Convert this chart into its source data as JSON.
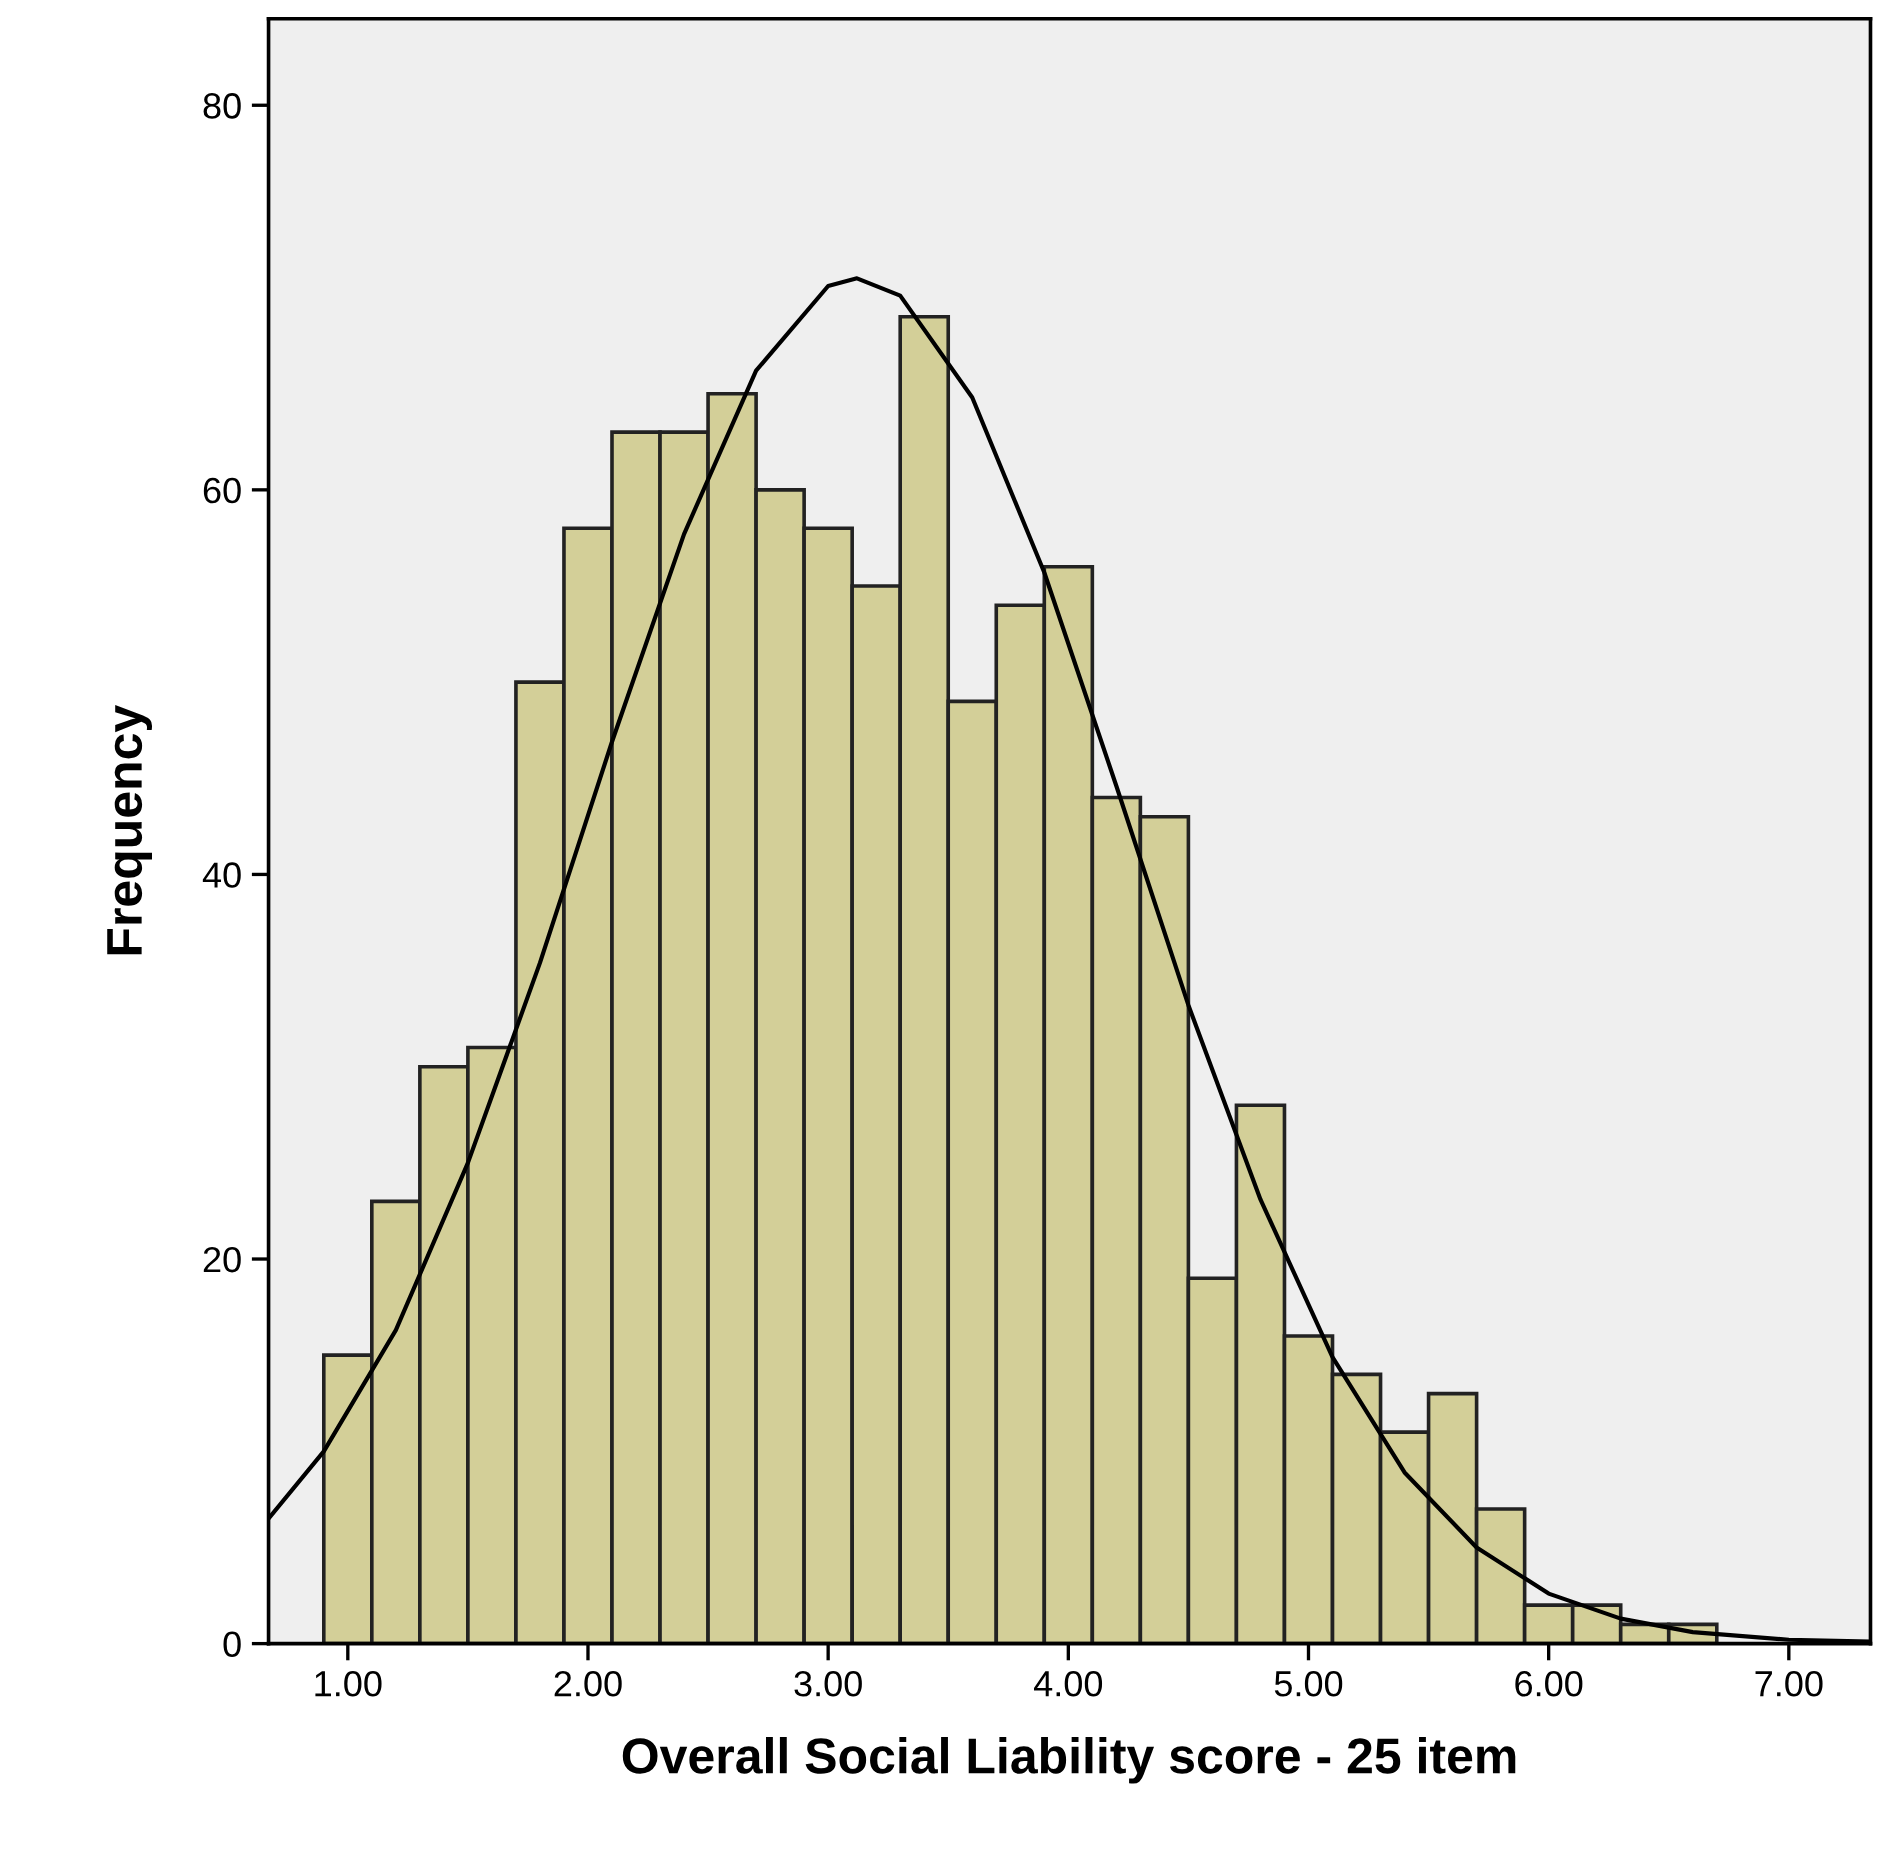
{
  "chart_data": {
    "type": "histogram",
    "xlabel": "Overall Social Liability score - 25 item",
    "ylabel": "Frequency",
    "bins": [
      0.9,
      1.1,
      1.3,
      1.5,
      1.7,
      1.9,
      2.1,
      2.3,
      2.5,
      2.7,
      2.9,
      3.1,
      3.3,
      3.5,
      3.7,
      3.9,
      4.1,
      4.3,
      4.5,
      4.7,
      4.9,
      5.1,
      5.3,
      5.5,
      5.7,
      5.9,
      6.1,
      6.3,
      6.5,
      6.7
    ],
    "values": [
      15,
      23,
      30,
      31,
      50,
      58,
      63,
      63,
      65,
      60,
      58,
      55,
      69,
      49,
      54,
      56,
      44,
      43,
      19,
      28,
      16,
      14,
      11,
      13,
      7,
      2,
      2,
      1,
      1
    ],
    "color": "#d3cf98",
    "series": [
      {
        "type": "line",
        "color": "#000000",
        "x": [
          0.67,
          0.9,
          1.2,
          1.5,
          1.8,
          2.1,
          2.4,
          2.7,
          3.0,
          3.12,
          3.3,
          3.6,
          3.9,
          4.2,
          4.5,
          4.8,
          5.1,
          5.4,
          5.7,
          6.0,
          6.3,
          6.6,
          7.0,
          7.34
        ],
        "values": [
          6.5,
          10,
          16.3,
          25,
          35.4,
          46.9,
          57.7,
          66.2,
          70.6,
          71,
          70.1,
          64.8,
          55.7,
          44.6,
          33.2,
          23.1,
          14.9,
          8.9,
          5,
          2.6,
          1.3,
          0.6,
          0.2,
          0.1
        ]
      }
    ],
    "xlim": [
      0.67,
      7.34
    ],
    "ylim": [
      0,
      84.5
    ],
    "xticks": [
      {
        "value": 1,
        "label": "1.00"
      },
      {
        "value": 2,
        "label": "2.00"
      },
      {
        "value": 3,
        "label": "3.00"
      },
      {
        "value": 4,
        "label": "4.00"
      },
      {
        "value": 5,
        "label": "5.00"
      },
      {
        "value": 6,
        "label": "6.00"
      },
      {
        "value": 7,
        "label": "7.00"
      }
    ],
    "yticks": [
      0,
      20,
      40,
      60,
      80
    ],
    "grid": false,
    "legend": false
  }
}
